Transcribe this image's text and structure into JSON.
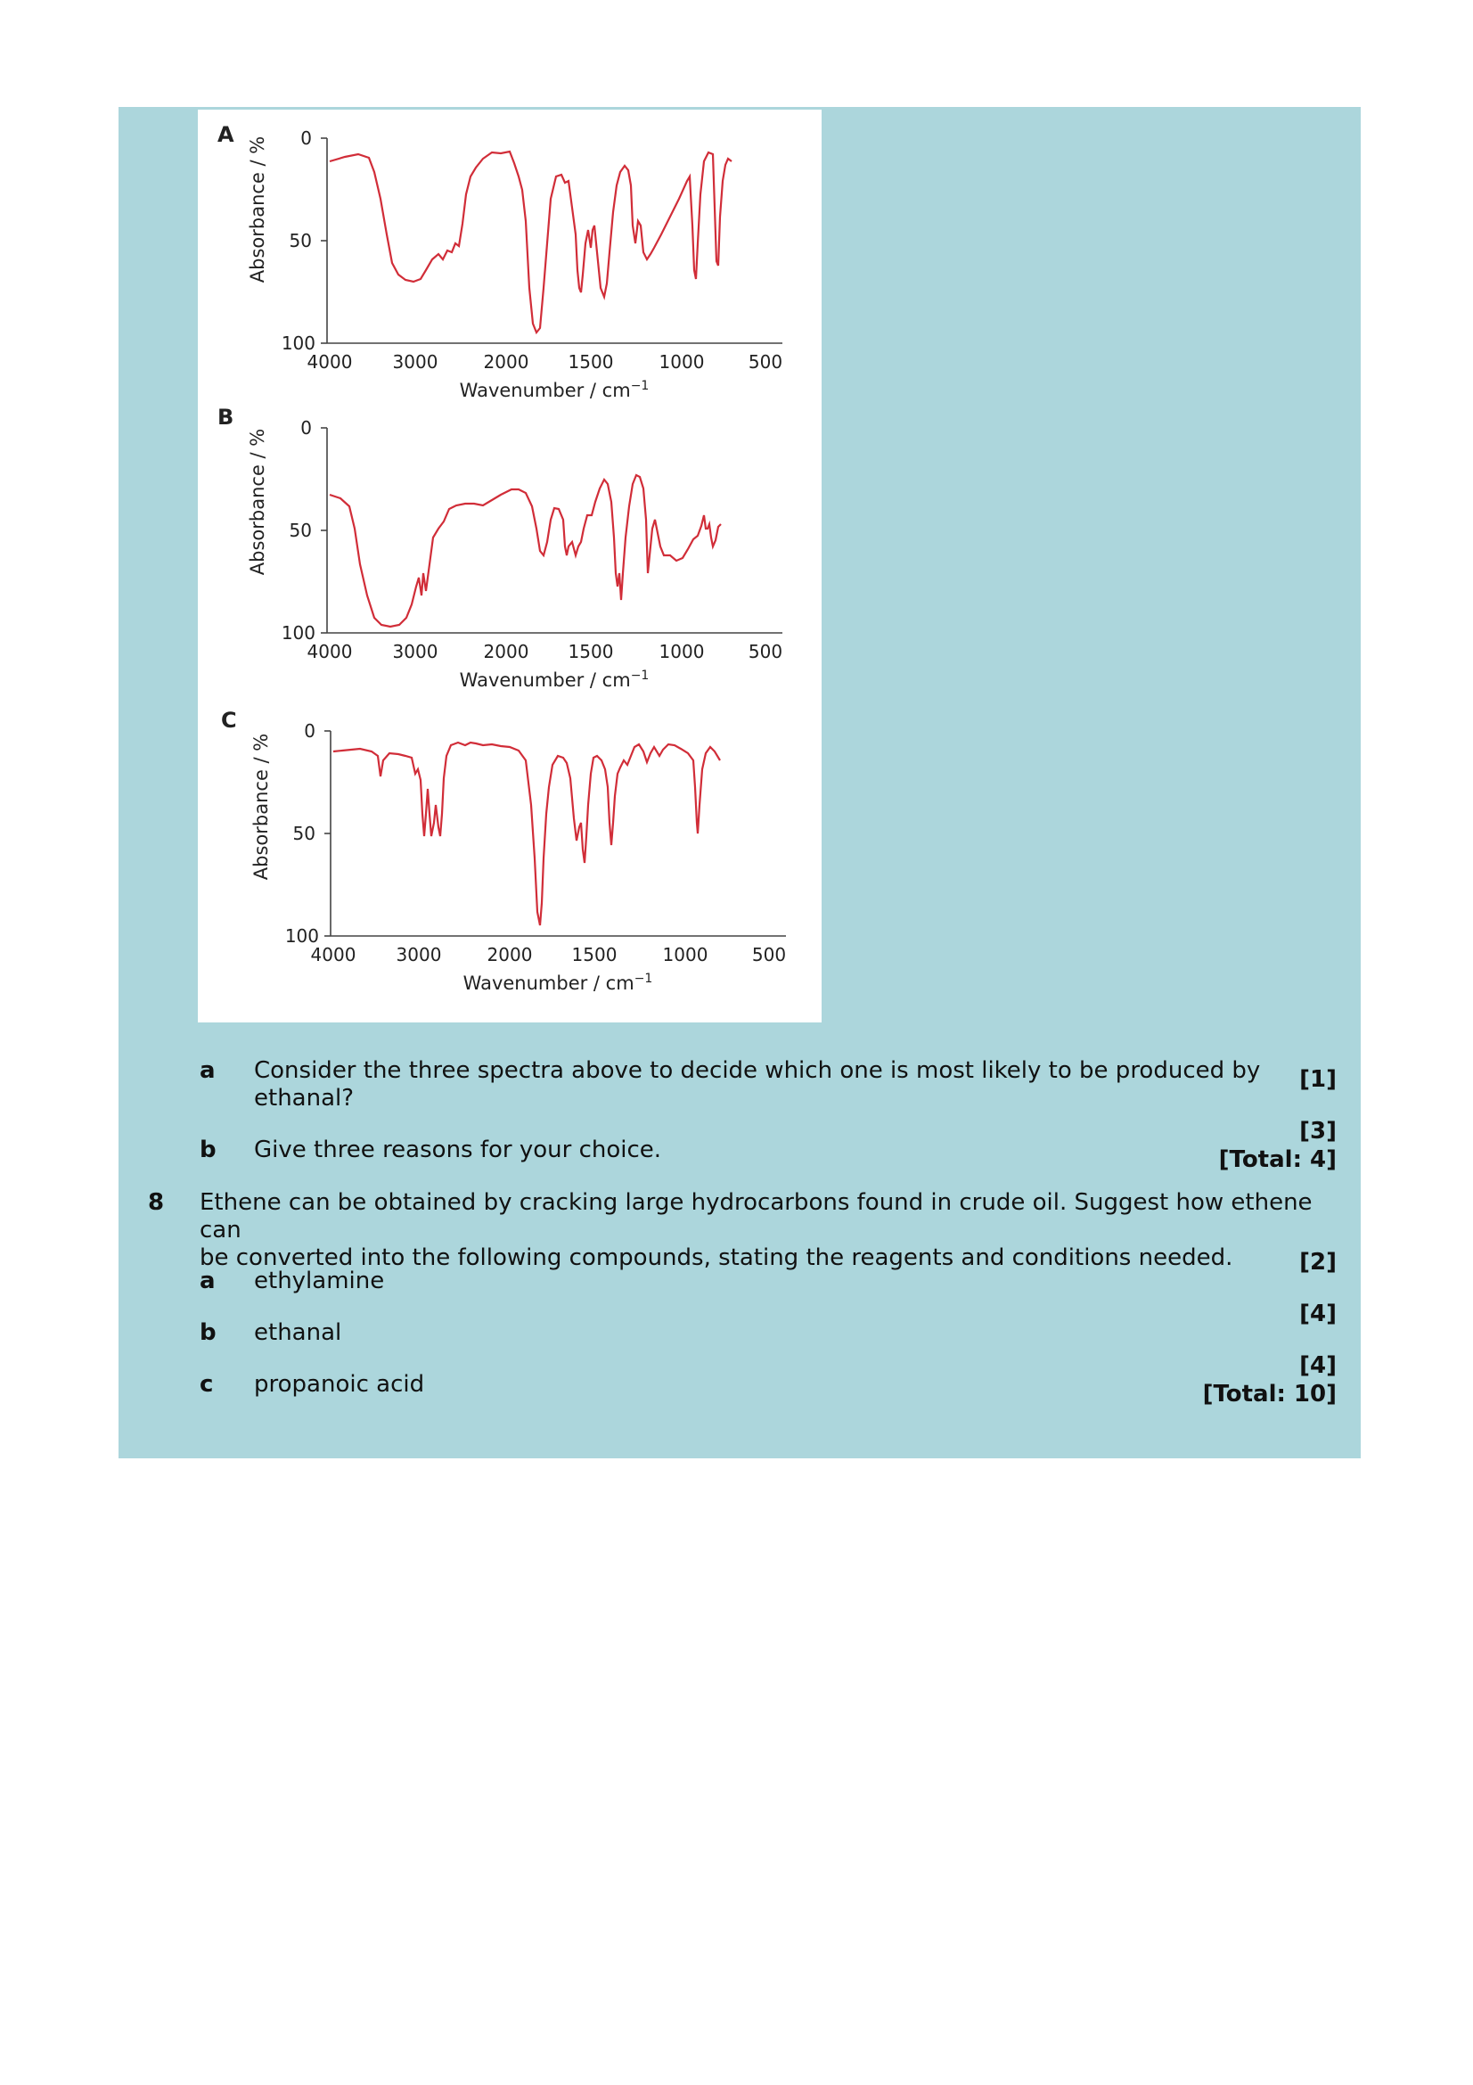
{
  "figure": {
    "spectra": [
      {
        "label": "A",
        "ylabel": "Absorbance / %",
        "xlabel": "Wavenumber / cm",
        "xlabel_sup": "−1",
        "yticks": [
          "0",
          "50",
          "100"
        ],
        "xticks": [
          "4000",
          "3000",
          "2000",
          "1500",
          "1000",
          "500"
        ],
        "line_color": "#d12d38"
      },
      {
        "label": "B",
        "ylabel": "Absorbance / %",
        "xlabel": "Wavenumber / cm",
        "xlabel_sup": "−1",
        "yticks": [
          "0",
          "50",
          "100"
        ],
        "xticks": [
          "4000",
          "3000",
          "2000",
          "1500",
          "1000",
          "500"
        ],
        "line_color": "#d12d38"
      },
      {
        "label": "C",
        "ylabel": "Absorbance / %",
        "xlabel": "Wavenumber / cm",
        "xlabel_sup": "−1",
        "yticks": [
          "0",
          "50",
          "100"
        ],
        "xticks": [
          "4000",
          "3000",
          "2000",
          "1500",
          "1000",
          "500"
        ],
        "line_color": "#d12d38"
      }
    ]
  },
  "q7": {
    "a": {
      "letter": "a",
      "line1": "Consider the three spectra above to decide which one is most likely to be produced by",
      "line2": "ethanal?",
      "marks": "[1]"
    },
    "b": {
      "letter": "b",
      "text": "Give three reasons for your choice.",
      "marks": "[3]",
      "total": "[Total: 4]"
    }
  },
  "q8": {
    "number": "8",
    "line1": "Ethene can be obtained by cracking large hydrocarbons found in crude oil. Suggest how ethene can",
    "line2": "be converted into the following compounds, stating the reagents and conditions needed.",
    "parts": [
      {
        "letter": "a",
        "text": "ethylamine",
        "marks": "[2]"
      },
      {
        "letter": "b",
        "text": "ethanal",
        "marks": "[4]"
      },
      {
        "letter": "c",
        "text": "propanoic acid",
        "marks": "[4]"
      }
    ],
    "total": "[Total: 10]"
  }
}
